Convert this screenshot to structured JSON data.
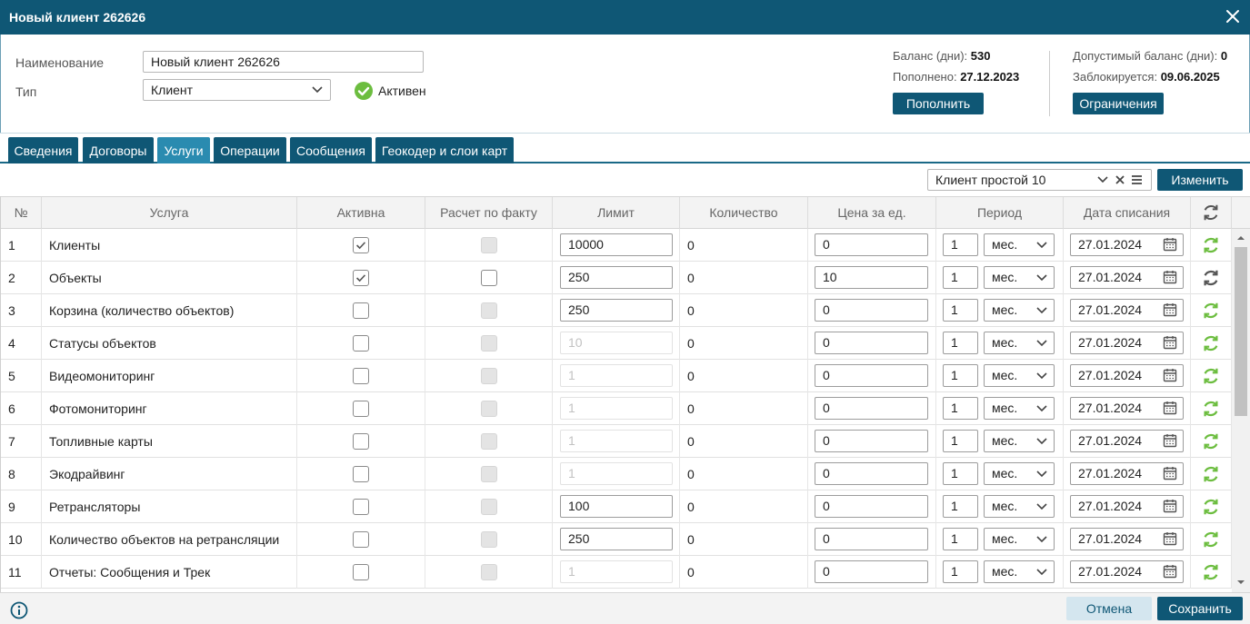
{
  "window": {
    "title": "Новый клиент 262626"
  },
  "form": {
    "name_label": "Наименование",
    "name_value": "Новый клиент 262626",
    "type_label": "Тип",
    "type_value": "Клиент",
    "status_label": "Активен"
  },
  "balance": {
    "balance_label": "Баланс (дни):",
    "balance_value": "530",
    "replenished_label": "Пополнено:",
    "replenished_value": "27.12.2023",
    "replenish_button": "Пополнить",
    "allowed_label": "Допустимый баланс (дни):",
    "allowed_value": "0",
    "blocked_label": "Заблокируется:",
    "blocked_value": "09.06.2025",
    "limits_button": "Ограничения"
  },
  "tabs": [
    {
      "label": "Сведения"
    },
    {
      "label": "Договоры"
    },
    {
      "label": "Услуги"
    },
    {
      "label": "Операции"
    },
    {
      "label": "Сообщения"
    },
    {
      "label": "Геокодер и слои карт"
    }
  ],
  "toolbar": {
    "plan_value": "Клиент простой 10",
    "change_button": "Изменить"
  },
  "table": {
    "headers": [
      "№",
      "Услуга",
      "Активна",
      "Расчет по факту",
      "Лимит",
      "Количество",
      "Цена за ед.",
      "Период",
      "Дата списания"
    ],
    "rows": [
      {
        "num": "1",
        "service": "Клиенты",
        "active": true,
        "fact": null,
        "limit": "10000",
        "limit_disabled": false,
        "qty": "0",
        "price": "0",
        "period_n": "1",
        "period_unit": "мес.",
        "date": "27.01.2024",
        "refresh": "green"
      },
      {
        "num": "2",
        "service": "Объекты",
        "active": true,
        "fact": false,
        "limit": "250",
        "limit_disabled": false,
        "qty": "0",
        "price": "10",
        "period_n": "1",
        "period_unit": "мес.",
        "date": "27.01.2024",
        "refresh": "gray"
      },
      {
        "num": "3",
        "service": "Корзина (количество объектов)",
        "active": false,
        "fact": null,
        "limit": "250",
        "limit_disabled": false,
        "qty": "0",
        "price": "0",
        "period_n": "1",
        "period_unit": "мес.",
        "date": "27.01.2024",
        "refresh": "green"
      },
      {
        "num": "4",
        "service": "Статусы объектов",
        "active": false,
        "fact": null,
        "limit": "10",
        "limit_disabled": true,
        "qty": "0",
        "price": "0",
        "period_n": "1",
        "period_unit": "мес.",
        "date": "27.01.2024",
        "refresh": "green"
      },
      {
        "num": "5",
        "service": "Видеомониторинг",
        "active": false,
        "fact": null,
        "limit": "1",
        "limit_disabled": true,
        "qty": "0",
        "price": "0",
        "period_n": "1",
        "period_unit": "мес.",
        "date": "27.01.2024",
        "refresh": "green"
      },
      {
        "num": "6",
        "service": "Фотомониторинг",
        "active": false,
        "fact": null,
        "limit": "1",
        "limit_disabled": true,
        "qty": "0",
        "price": "0",
        "period_n": "1",
        "period_unit": "мес.",
        "date": "27.01.2024",
        "refresh": "green"
      },
      {
        "num": "7",
        "service": "Топливные карты",
        "active": false,
        "fact": null,
        "limit": "1",
        "limit_disabled": true,
        "qty": "0",
        "price": "0",
        "period_n": "1",
        "period_unit": "мес.",
        "date": "27.01.2024",
        "refresh": "green"
      },
      {
        "num": "8",
        "service": "Экодрайвинг",
        "active": false,
        "fact": null,
        "limit": "1",
        "limit_disabled": true,
        "qty": "0",
        "price": "0",
        "period_n": "1",
        "period_unit": "мес.",
        "date": "27.01.2024",
        "refresh": "green"
      },
      {
        "num": "9",
        "service": "Ретрансляторы",
        "active": false,
        "fact": null,
        "limit": "100",
        "limit_disabled": false,
        "qty": "0",
        "price": "0",
        "period_n": "1",
        "period_unit": "мес.",
        "date": "27.01.2024",
        "refresh": "green"
      },
      {
        "num": "10",
        "service": "Количество объектов на ретрансляции",
        "active": false,
        "fact": null,
        "limit": "250",
        "limit_disabled": false,
        "qty": "0",
        "price": "0",
        "period_n": "1",
        "period_unit": "мес.",
        "date": "27.01.2024",
        "refresh": "green"
      },
      {
        "num": "11",
        "service": "Отчеты: Сообщения и Трек",
        "active": false,
        "fact": null,
        "limit": "1",
        "limit_disabled": true,
        "qty": "0",
        "price": "0",
        "period_n": "1",
        "period_unit": "мес.",
        "date": "27.01.2024",
        "refresh": "green"
      }
    ]
  },
  "footer": {
    "cancel_button": "Отмена",
    "save_button": "Сохранить"
  },
  "icons": {
    "close": "close-icon",
    "chevron": "chevron-down-icon",
    "check": "check-circle-icon",
    "clear": "clear-icon",
    "menu": "menu-icon",
    "calendar": "calendar-icon",
    "refresh": "refresh-icon",
    "info": "info-icon"
  },
  "colors": {
    "primary": "#0f5775",
    "active_tab": "#2a8bb0",
    "success": "#6cbd3f",
    "refresh_gray": "#555555"
  }
}
